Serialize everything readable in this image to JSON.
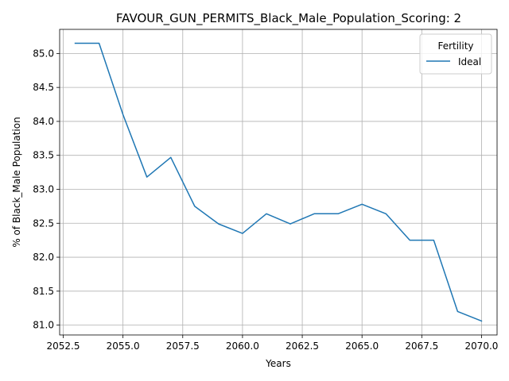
{
  "chart_data": {
    "type": "line",
    "title": "FAVOUR_GUN_PERMITS_Black_Male_Population_Scoring: 2",
    "xlabel": "Years",
    "ylabel": "% of Black_Male Population",
    "xlim": [
      2052.35,
      2070.65
    ],
    "ylim": [
      80.855,
      85.355
    ],
    "x_ticks": [
      2052.5,
      2055.0,
      2057.5,
      2060.0,
      2062.5,
      2065.0,
      2067.5,
      2070.0
    ],
    "x_tick_labels": [
      "2052.5",
      "2055.0",
      "2057.5",
      "2060.0",
      "2062.5",
      "2065.0",
      "2067.5",
      "2070.0"
    ],
    "y_ticks": [
      81.0,
      81.5,
      82.0,
      82.5,
      83.0,
      83.5,
      84.0,
      84.5,
      85.0
    ],
    "y_tick_labels": [
      "81.0",
      "81.5",
      "82.0",
      "82.5",
      "83.0",
      "83.5",
      "84.0",
      "84.5",
      "85.0"
    ],
    "grid": true,
    "legend": {
      "title": "Fertility",
      "placement": "top-right"
    },
    "series": [
      {
        "name": "Ideal",
        "color": "#1f77b4",
        "x": [
          2053,
          2054,
          2055,
          2056,
          2057,
          2058,
          2059,
          2060,
          2061,
          2062,
          2063,
          2064,
          2065,
          2066,
          2067,
          2068,
          2069,
          2070
        ],
        "y": [
          85.15,
          85.15,
          84.1,
          83.18,
          83.47,
          82.75,
          82.49,
          82.35,
          82.64,
          82.49,
          82.64,
          82.64,
          82.78,
          82.64,
          82.25,
          82.25,
          81.2,
          81.06
        ]
      }
    ]
  }
}
